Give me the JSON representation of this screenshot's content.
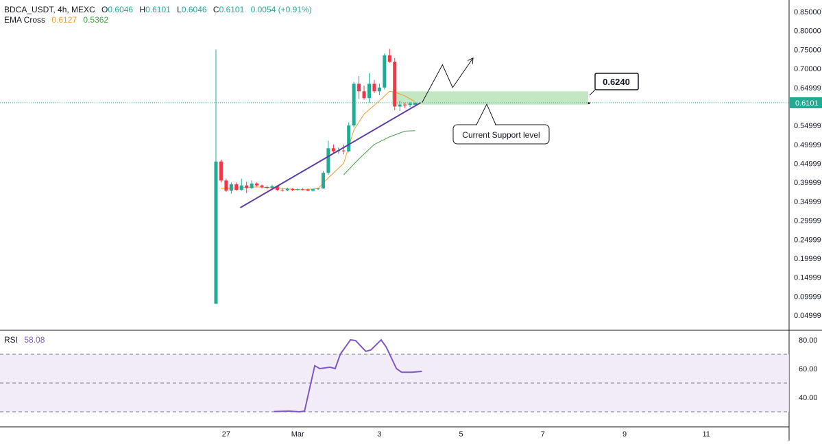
{
  "header": {
    "symbol": "BDCA_USDT, 4h, MEXC",
    "o_label": "O",
    "o_value": "0.6046",
    "h_label": "H",
    "h_value": "0.6101",
    "l_label": "L",
    "l_value": "0.6046",
    "c_label": "C",
    "c_value": "0.6101",
    "change": "0.0054 (+0.91%)",
    "ema_label": "EMA Cross",
    "ema_fast": "0.6127",
    "ema_slow": "0.5362"
  },
  "rsi_panel": {
    "label": "RSI",
    "value": "58.08"
  },
  "annotations": {
    "price_box": "0.6240",
    "support_callout": "Current Support level",
    "last_price_tag": "0.6101"
  },
  "colors": {
    "up": "#22ab94",
    "down": "#f23645",
    "ema_fast": "#f59b33",
    "ema_slow": "#43a047",
    "trendline": "#5b3fa3",
    "rsi": "#7e57c2",
    "support_zone": "#8fd48f"
  },
  "chart_data": [
    {
      "type": "candlestick",
      "title": "",
      "xlabel": "",
      "ylabel": "",
      "ylim": [
        0.02,
        0.85
      ],
      "y_ticks": [
        "0.04999",
        "0.09999",
        "0.14999",
        "0.19999",
        "0.24999",
        "0.29999",
        "0.34999",
        "0.39999",
        "0.44999",
        "0.49999",
        "0.54999",
        "0.64999",
        "0.70000",
        "0.75000",
        "0.80000",
        "0.85000"
      ],
      "x_ticks": [
        {
          "label": "27",
          "i": 2
        },
        {
          "label": "Mar",
          "i": 16
        },
        {
          "label": "3",
          "i": 32
        },
        {
          "label": "5",
          "i": 48
        },
        {
          "label": "7",
          "i": 64
        },
        {
          "label": "9",
          "i": 80
        },
        {
          "label": "11",
          "i": 96
        }
      ],
      "candles": [
        [
          0.08,
          0.75,
          0.08,
          0.455
        ],
        [
          0.455,
          0.46,
          0.4,
          0.405
        ],
        [
          0.405,
          0.41,
          0.375,
          0.378
        ],
        [
          0.378,
          0.4,
          0.37,
          0.395
        ],
        [
          0.395,
          0.4,
          0.378,
          0.38
        ],
        [
          0.38,
          0.41,
          0.378,
          0.392
        ],
        [
          0.392,
          0.402,
          0.372,
          0.385
        ],
        [
          0.385,
          0.405,
          0.383,
          0.397
        ],
        [
          0.397,
          0.4,
          0.389,
          0.392
        ],
        [
          0.392,
          0.394,
          0.384,
          0.388
        ],
        [
          0.388,
          0.392,
          0.382,
          0.386
        ],
        [
          0.386,
          0.394,
          0.38,
          0.39
        ],
        [
          0.39,
          0.392,
          0.378,
          0.38
        ],
        [
          0.38,
          0.384,
          0.376,
          0.379
        ],
        [
          0.379,
          0.386,
          0.377,
          0.383
        ],
        [
          0.383,
          0.385,
          0.377,
          0.38
        ],
        [
          0.38,
          0.384,
          0.378,
          0.382
        ],
        [
          0.382,
          0.385,
          0.379,
          0.381
        ],
        [
          0.381,
          0.384,
          0.377,
          0.378
        ],
        [
          0.378,
          0.383,
          0.376,
          0.382
        ],
        [
          0.382,
          0.386,
          0.38,
          0.384
        ],
        [
          0.384,
          0.43,
          0.383,
          0.425
        ],
        [
          0.425,
          0.51,
          0.42,
          0.49
        ],
        [
          0.49,
          0.5,
          0.475,
          0.482
        ],
        [
          0.482,
          0.492,
          0.475,
          0.484
        ],
        [
          0.484,
          0.5,
          0.474,
          0.482
        ],
        [
          0.482,
          0.558,
          0.48,
          0.55
        ],
        [
          0.55,
          0.665,
          0.545,
          0.66
        ],
        [
          0.66,
          0.68,
          0.62,
          0.64
        ],
        [
          0.64,
          0.655,
          0.618,
          0.622
        ],
        [
          0.622,
          0.688,
          0.61,
          0.66
        ],
        [
          0.66,
          0.67,
          0.635,
          0.64
        ],
        [
          0.64,
          0.66,
          0.63,
          0.65
        ],
        [
          0.65,
          0.74,
          0.645,
          0.735
        ],
        [
          0.735,
          0.752,
          0.715,
          0.718
        ],
        [
          0.718,
          0.728,
          0.59,
          0.6
        ],
        [
          0.6,
          0.615,
          0.588,
          0.605
        ],
        [
          0.605,
          0.61,
          0.596,
          0.604
        ],
        [
          0.604,
          0.612,
          0.598,
          0.608
        ],
        [
          0.6046,
          0.6101,
          0.6046,
          0.6101
        ]
      ],
      "ema_fast": [
        [
          1,
          0.385
        ],
        [
          3,
          0.385
        ],
        [
          8,
          0.388
        ],
        [
          12,
          0.385
        ],
        [
          17,
          0.38
        ],
        [
          20,
          0.384
        ],
        [
          22,
          0.412
        ],
        [
          25,
          0.45
        ],
        [
          27,
          0.538
        ],
        [
          29,
          0.58
        ],
        [
          32,
          0.615
        ],
        [
          34,
          0.64
        ],
        [
          35,
          0.638
        ],
        [
          37,
          0.628
        ],
        [
          39,
          0.6127
        ]
      ],
      "ema_slow": [
        [
          25,
          0.42
        ],
        [
          28,
          0.462
        ],
        [
          31,
          0.5
        ],
        [
          34,
          0.52
        ],
        [
          37,
          0.535
        ],
        [
          39,
          0.5362
        ]
      ],
      "trendline": [
        [
          1,
          0.355
        ],
        [
          39,
          0.61
        ]
      ],
      "projection": [
        [
          39,
          0.61
        ],
        [
          43,
          0.71
        ],
        [
          45,
          0.65
        ],
        [
          49,
          0.728
        ]
      ],
      "support_zone": [
        0.605,
        0.64
      ],
      "last_price": 0.6101
    },
    {
      "type": "line",
      "name": "RSI",
      "ylim": [
        30,
        85
      ],
      "y_ticks": [
        "80.00",
        "60.00",
        "40.00"
      ],
      "band": [
        30,
        70
      ],
      "mid": 50,
      "points": [
        [
          10,
          30.2
        ],
        [
          13,
          30.5
        ],
        [
          15,
          30.0
        ],
        [
          16,
          30.5
        ],
        [
          18,
          62
        ],
        [
          19,
          60
        ],
        [
          21,
          61
        ],
        [
          22,
          60
        ],
        [
          23,
          70
        ],
        [
          25,
          80
        ],
        [
          26,
          79.5
        ],
        [
          28,
          72
        ],
        [
          29,
          73
        ],
        [
          31,
          80
        ],
        [
          32,
          75
        ],
        [
          34,
          60
        ],
        [
          35,
          57.5
        ],
        [
          37,
          57.5
        ],
        [
          39,
          58.08
        ]
      ]
    }
  ]
}
